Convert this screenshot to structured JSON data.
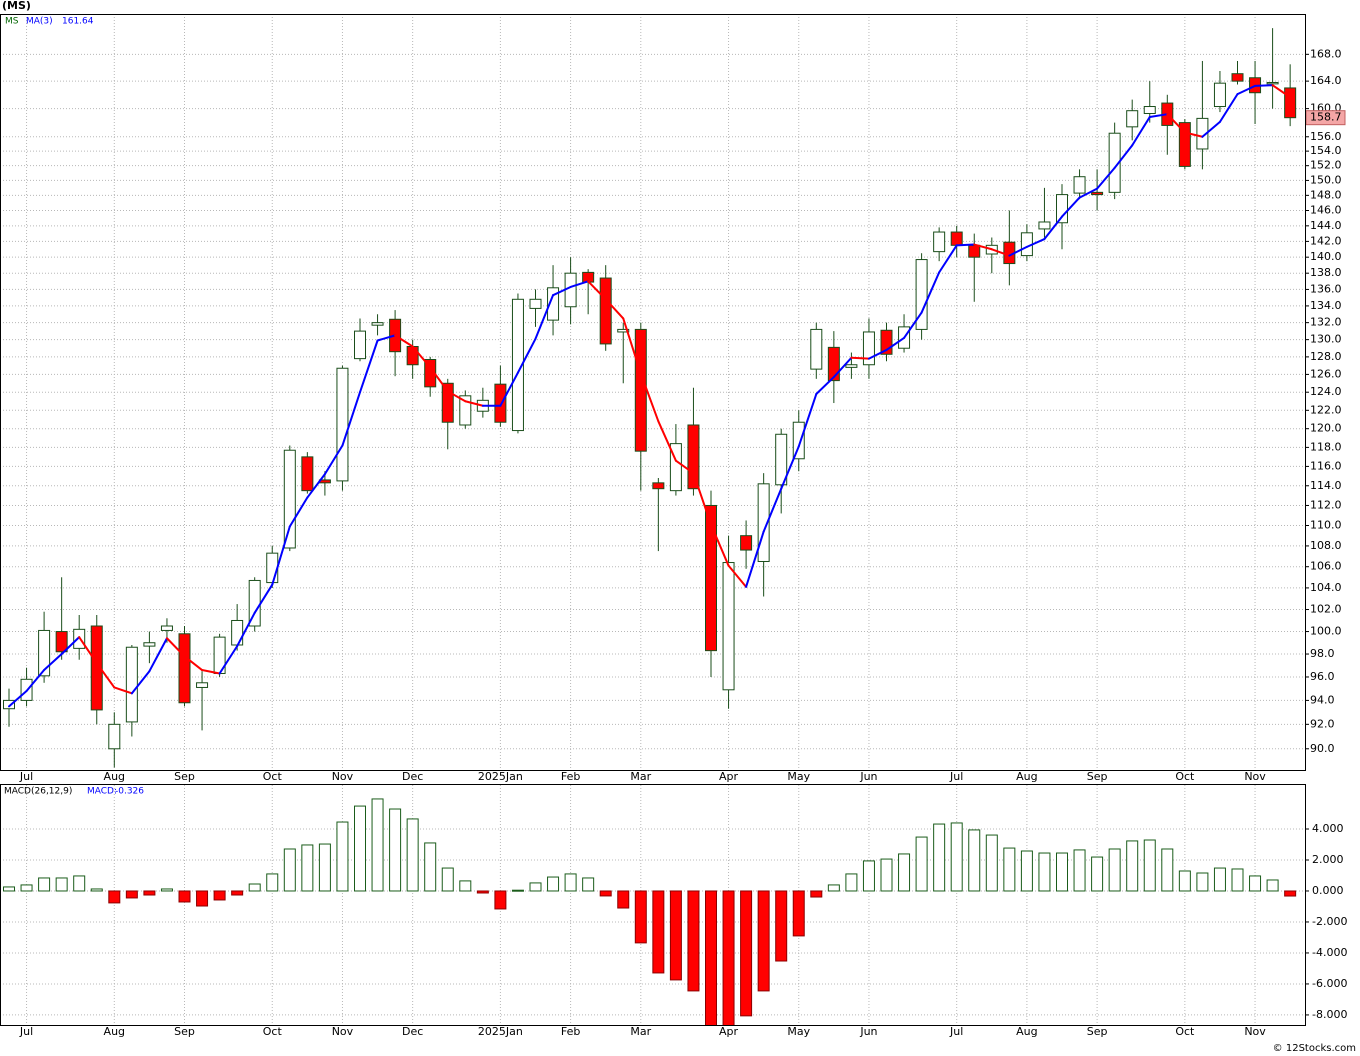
{
  "chart_data": [
    {
      "type": "candlestick",
      "title": "(MS)",
      "symbol": "MS",
      "log_scale": true,
      "grid": true,
      "up_color": "#ffffff",
      "down_color": "#ff0000",
      "outline_color": "#1a4d1a",
      "symbol_color": "#006400",
      "categories": [
        null,
        "Jul",
        null,
        null,
        null,
        null,
        "Aug",
        null,
        null,
        null,
        "Sep",
        null,
        null,
        null,
        null,
        "Oct",
        null,
        null,
        null,
        "Nov",
        null,
        null,
        null,
        "Dec",
        null,
        null,
        null,
        null,
        "2025Jan",
        null,
        null,
        null,
        "Feb",
        null,
        null,
        null,
        "Mar",
        null,
        null,
        null,
        null,
        "Apr",
        null,
        null,
        null,
        "May",
        null,
        null,
        null,
        "Jun",
        null,
        null,
        null,
        null,
        "Jul",
        null,
        null,
        null,
        "Aug",
        null,
        null,
        null,
        "Sep",
        null,
        null,
        null,
        null,
        "Oct",
        null,
        null,
        null,
        "Nov",
        null,
        null
      ],
      "open": [
        93.3,
        94.0,
        96.1,
        100.0,
        98.5,
        100.5,
        90.0,
        92.2,
        98.7,
        100.1,
        99.8,
        95.1,
        96.3,
        98.8,
        100.5,
        104.5,
        107.8,
        117.0,
        114.6,
        114.5,
        127.8,
        131.7,
        132.4,
        129.2,
        127.7,
        125.0,
        120.4,
        121.9,
        124.9,
        119.8,
        133.7,
        132.3,
        133.9,
        138.1,
        137.4,
        130.9,
        131.2,
        114.3,
        113.5,
        120.4,
        112.0,
        94.9,
        109.0,
        106.5,
        114.1,
        116.8,
        126.6,
        129.1,
        126.8,
        127.1,
        131.1,
        129.0,
        131.2,
        140.7,
        143.2,
        141.5,
        140.4,
        141.9,
        140.2,
        143.6,
        144.4,
        148.3,
        148.4,
        148.4,
        157.4,
        159.3,
        160.8,
        158.0,
        154.3,
        160.3,
        165.1,
        164.5,
        163.6,
        163.0
      ],
      "high": [
        95.0,
        96.8,
        101.8,
        105.0,
        101.5,
        101.5,
        93.0,
        98.8,
        100.0,
        101.2,
        100.5,
        96.5,
        99.8,
        102.5,
        105.0,
        108.0,
        118.2,
        117.5,
        115.5,
        127.0,
        132.5,
        133.0,
        133.5,
        130.0,
        128.0,
        125.5,
        124.2,
        124.5,
        127.0,
        135.5,
        136.0,
        139.0,
        140.0,
        138.5,
        139.0,
        132.0,
        132.0,
        114.8,
        120.5,
        124.5,
        113.5,
        109.0,
        110.5,
        115.3,
        120.0,
        122.0,
        132.0,
        131.0,
        128.5,
        132.5,
        132.0,
        133.0,
        140.5,
        143.8,
        144.0,
        143.0,
        142.5,
        146.0,
        144.2,
        149.0,
        149.5,
        151.5,
        151.5,
        158.0,
        161.3,
        164.0,
        162.0,
        158.5,
        167.0,
        165.5,
        167.0,
        167.0,
        172.0,
        166.5
      ],
      "low": [
        91.8,
        93.5,
        95.5,
        97.5,
        97.5,
        92.0,
        88.5,
        91.0,
        97.2,
        99.0,
        93.5,
        91.5,
        96.0,
        98.3,
        100.0,
        104.0,
        107.5,
        113.2,
        113.0,
        113.5,
        127.5,
        130.5,
        125.8,
        125.5,
        123.5,
        117.8,
        120.0,
        121.2,
        120.2,
        119.5,
        131.5,
        130.5,
        131.8,
        133.0,
        128.7,
        125.0,
        113.5,
        107.5,
        113.0,
        113.0,
        96.0,
        93.3,
        105.8,
        103.2,
        111.2,
        115.5,
        125.5,
        122.8,
        125.5,
        125.5,
        127.5,
        128.5,
        130.0,
        139.5,
        140.0,
        134.5,
        138.0,
        136.5,
        139.5,
        142.5,
        141.0,
        147.5,
        146.0,
        147.5,
        155.5,
        158.0,
        153.5,
        151.5,
        151.5,
        159.5,
        163.5,
        157.8,
        160.0,
        157.5
      ],
      "close": [
        94.0,
        95.8,
        100.1,
        98.2,
        100.2,
        93.2,
        92.0,
        98.6,
        99.0,
        100.5,
        93.8,
        95.5,
        99.5,
        101.0,
        104.7,
        107.3,
        117.7,
        113.5,
        114.3,
        126.7,
        131.0,
        132.0,
        128.6,
        127.1,
        124.6,
        120.7,
        123.6,
        123.1,
        120.7,
        134.8,
        134.8,
        136.2,
        138.0,
        136.9,
        129.5,
        131.2,
        117.6,
        113.7,
        118.4,
        113.7,
        98.3,
        106.4,
        107.6,
        114.2,
        119.4,
        120.7,
        131.2,
        125.3,
        127.1,
        130.9,
        128.3,
        131.5,
        139.7,
        143.2,
        141.5,
        140.0,
        141.5,
        139.2,
        143.1,
        144.5,
        148.1,
        150.5,
        148.1,
        156.5,
        159.7,
        160.3,
        157.6,
        151.9,
        158.6,
        163.7,
        164.0,
        162.3,
        163.8,
        158.7
      ],
      "series": [
        {
          "name": "MA(3)",
          "color": "#0000ff",
          "down_color": "#ff0000",
          "values": [
            93.5,
            94.8,
            96.6,
            98.0,
            99.5,
            97.2,
            95.1,
            94.6,
            96.5,
            99.4,
            97.8,
            96.6,
            96.3,
            98.7,
            101.7,
            104.3,
            109.9,
            112.8,
            115.2,
            118.2,
            124.0,
            129.9,
            130.5,
            129.2,
            126.8,
            124.1,
            123.0,
            122.5,
            122.5,
            126.2,
            130.1,
            135.3,
            136.3,
            137.0,
            134.8,
            132.5,
            126.1,
            120.8,
            116.6,
            115.3,
            110.1,
            106.1,
            104.1,
            109.4,
            113.7,
            118.1,
            123.8,
            125.7,
            127.9,
            127.8,
            128.8,
            130.2,
            133.2,
            138.1,
            141.5,
            141.6,
            141.0,
            140.2,
            141.3,
            142.3,
            145.2,
            147.7,
            148.9,
            151.7,
            154.8,
            158.8,
            159.2,
            156.6,
            156.0,
            158.1,
            162.1,
            163.3,
            163.4,
            161.64
          ]
        }
      ],
      "last_price_color": "#f4a6a6",
      "ylim": [
        88.3,
        174.2
      ],
      "yticks": [
        {
          "value": 90,
          "label": "90.0"
        },
        {
          "value": 92,
          "label": "92.0"
        },
        {
          "value": 94,
          "label": "94.0"
        },
        {
          "value": 96,
          "label": "96.0"
        },
        {
          "value": 98,
          "label": "98.0"
        },
        {
          "value": 100,
          "label": "100.0"
        },
        {
          "value": 102,
          "label": "102.0"
        },
        {
          "value": 104,
          "label": "104.0"
        },
        {
          "value": 106,
          "label": "106.0"
        },
        {
          "value": 108,
          "label": "108.0"
        },
        {
          "value": 110,
          "label": "110.0"
        },
        {
          "value": 112,
          "label": "112.0"
        },
        {
          "value": 114,
          "label": "114.0"
        },
        {
          "value": 116,
          "label": "116.0"
        },
        {
          "value": 118,
          "label": "118.0"
        },
        {
          "value": 120,
          "label": "120.0"
        },
        {
          "value": 122,
          "label": "122.0"
        },
        {
          "value": 124,
          "label": "124.0"
        },
        {
          "value": 126,
          "label": "126.0"
        },
        {
          "value": 128,
          "label": "128.0"
        },
        {
          "value": 130,
          "label": "130.0"
        },
        {
          "value": 132,
          "label": "132.0"
        },
        {
          "value": 134,
          "label": "134.0"
        },
        {
          "value": 136,
          "label": "136.0"
        },
        {
          "value": 138,
          "label": "138.0"
        },
        {
          "value": 140,
          "label": "140.0"
        },
        {
          "value": 142,
          "label": "142.0"
        },
        {
          "value": 144,
          "label": "144.0"
        },
        {
          "value": 146,
          "label": "146.0"
        },
        {
          "value": 148,
          "label": "148.0"
        },
        {
          "value": 150,
          "label": "150.0"
        },
        {
          "value": 152,
          "label": "152.0"
        },
        {
          "value": 154,
          "label": "154.0"
        },
        {
          "value": 156,
          "label": "156.0"
        },
        {
          "value": 160,
          "label": "160.0"
        },
        {
          "value": 164,
          "label": "164.0"
        },
        {
          "value": 168,
          "label": "168.0"
        }
      ]
    },
    {
      "type": "bar",
      "title": "MACD(26,12,9)",
      "grid": true,
      "up_color": "#ffffff",
      "down_color": "#ff0000",
      "outline_color": "#1a5c1a",
      "label_color": "#0000ff",
      "series": [
        {
          "name": "MACD:",
          "values": [
            0.26,
            0.39,
            0.84,
            0.84,
            0.97,
            0.13,
            -0.77,
            -0.45,
            -0.26,
            0.13,
            -0.71,
            -0.97,
            -0.58,
            -0.26,
            0.45,
            1.1,
            2.71,
            2.97,
            3.03,
            4.45,
            5.48,
            5.94,
            5.29,
            4.65,
            3.1,
            1.48,
            0.65,
            -0.13,
            -1.16,
            0.05,
            0.52,
            0.9,
            1.1,
            0.84,
            -0.32,
            -1.1,
            -3.35,
            -5.29,
            -5.74,
            -6.45,
            -8.8,
            -8.8,
            -8.06,
            -6.45,
            -4.52,
            -2.9,
            -0.39,
            0.39,
            1.1,
            1.94,
            2.06,
            2.39,
            3.48,
            4.32,
            4.39,
            3.94,
            3.61,
            2.77,
            2.58,
            2.45,
            2.45,
            2.65,
            2.19,
            2.71,
            3.23,
            3.29,
            2.71,
            1.29,
            1.16,
            1.48,
            1.42,
            0.97,
            0.71,
            -0.326
          ]
        }
      ],
      "ylim": [
        -8.65,
        6.84
      ],
      "yticks": [
        {
          "value": 4,
          "label": "4.000"
        },
        {
          "value": 2,
          "label": "2.000"
        },
        {
          "value": 0,
          "label": "0.000"
        },
        {
          "value": -2,
          "label": "-2.000"
        },
        {
          "value": -4,
          "label": "-4.000"
        },
        {
          "value": -6,
          "label": "-6.000"
        },
        {
          "value": -8,
          "label": "-8.000"
        }
      ]
    }
  ],
  "source": "© 12Stocks.com"
}
